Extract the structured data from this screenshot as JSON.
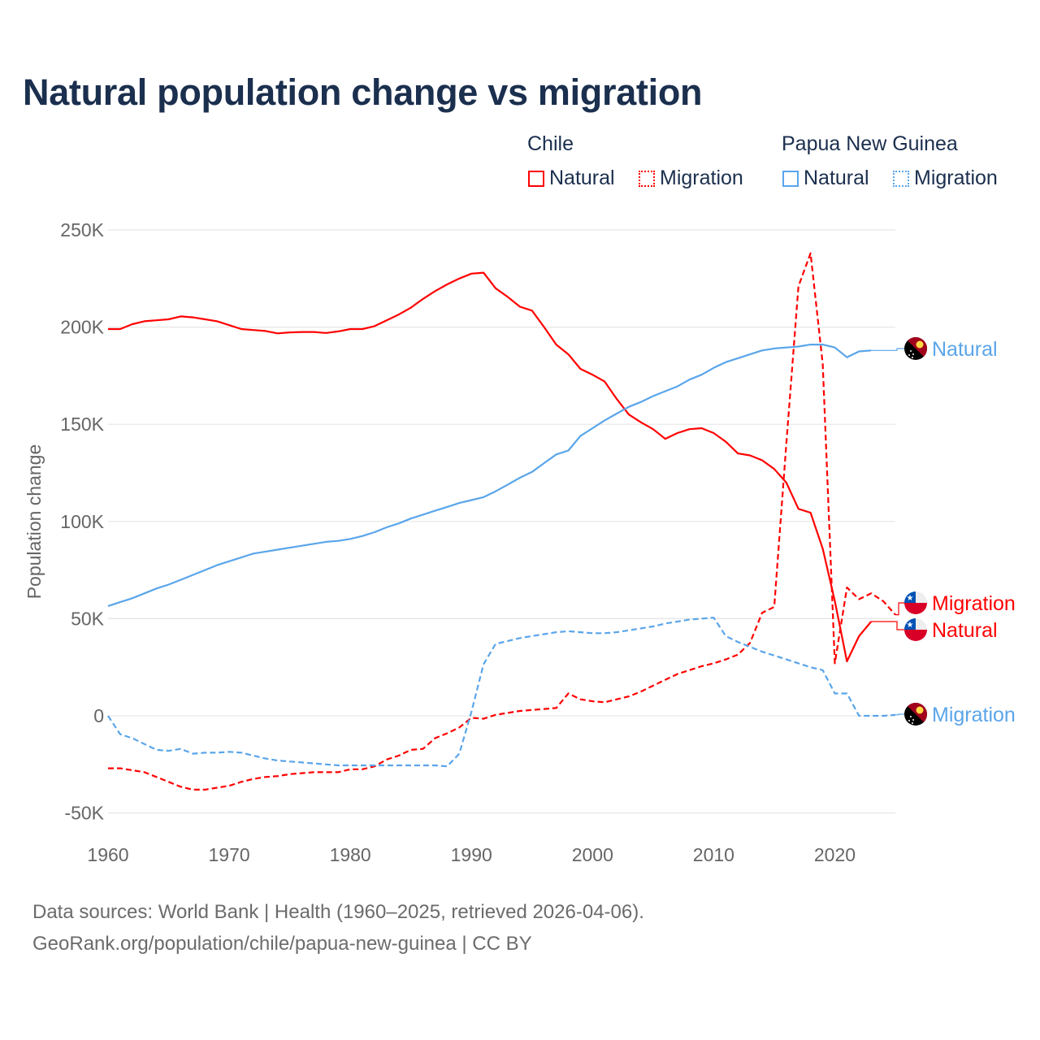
{
  "chart_data": {
    "type": "line",
    "title": "Natural population change vs migration",
    "xlabel": "",
    "ylabel": "Population change",
    "xlim": [
      1960,
      2025
    ],
    "ylim": [
      -50000,
      250000
    ],
    "x_ticks": [
      "1960",
      "1970",
      "1980",
      "1990",
      "2000",
      "2010",
      "2020"
    ],
    "y_ticks": [
      {
        "value": 250000,
        "label": "250K"
      },
      {
        "value": 200000,
        "label": "200K"
      },
      {
        "value": 150000,
        "label": "150K"
      },
      {
        "value": 100000,
        "label": "100K"
      },
      {
        "value": 50000,
        "label": "50K"
      },
      {
        "value": 0,
        "label": "0"
      },
      {
        "value": -50000,
        "label": "-50K"
      }
    ],
    "grid": true,
    "legend": {
      "placement": "top-right",
      "groups": [
        {
          "country": "Chile",
          "items": [
            "Natural",
            "Migration"
          ]
        },
        {
          "country": "Papua New Guinea",
          "items": [
            "Natural",
            "Migration"
          ]
        }
      ]
    },
    "series": [
      {
        "name": "Chile Natural",
        "country": "Chile",
        "kind": "Natural",
        "label": "Natural",
        "color": "#ff0000",
        "dashed": false,
        "flag": "chile",
        "x_start": 1960,
        "values": [
          199000,
          199000,
          201500,
          203000,
          203500,
          204000,
          205500,
          205000,
          204000,
          203000,
          201000,
          199000,
          198500,
          198000,
          196800,
          197300,
          197500,
          197500,
          197000,
          197800,
          199000,
          199000,
          200500,
          203500,
          206500,
          210000,
          214500,
          218500,
          222000,
          225000,
          227500,
          228000,
          220000,
          215500,
          210500,
          208500,
          200000,
          191000,
          186000,
          178500,
          175500,
          172000,
          163000,
          155000,
          151000,
          147500,
          142500,
          145500,
          147500,
          148000,
          145500,
          141000,
          135000,
          134000,
          131500,
          127000,
          120000,
          106500,
          104500,
          86000,
          59000,
          28000,
          41000,
          48500
        ]
      },
      {
        "name": "Chile Migration",
        "country": "Chile",
        "kind": "Migration",
        "label": "Migration",
        "color": "#ff0000",
        "dashed": true,
        "flag": "chile",
        "x_start": 1960,
        "values": [
          -27000,
          -27000,
          -28000,
          -29000,
          -31500,
          -34000,
          -36500,
          -38000,
          -38000,
          -37000,
          -36000,
          -34000,
          -32500,
          -31500,
          -31000,
          -30000,
          -29500,
          -29000,
          -29000,
          -29000,
          -27500,
          -27500,
          -26000,
          -22500,
          -20500,
          -17500,
          -17000,
          -11500,
          -9000,
          -6000,
          -1000,
          -1500,
          500,
          1500,
          2500,
          3000,
          3500,
          4000,
          11500,
          8500,
          7500,
          7000,
          8500,
          10000,
          12500,
          15500,
          18500,
          21500,
          23500,
          25500,
          27000,
          29000,
          31500,
          37500,
          53000,
          56000,
          140000,
          221000,
          238000,
          181000,
          27000,
          66000,
          60000,
          63000,
          59000,
          52000
        ]
      },
      {
        "name": "Papua New Guinea Natural",
        "country": "Papua New Guinea",
        "kind": "Natural",
        "label": "Natural",
        "color": "#5aa5ea",
        "dashed": false,
        "flag": "png",
        "x_start": 1960,
        "values": [
          56500,
          58500,
          60500,
          63000,
          65500,
          67500,
          70000,
          72500,
          75000,
          77500,
          79500,
          81500,
          83500,
          84500,
          85500,
          86500,
          87500,
          88500,
          89500,
          90000,
          91000,
          92500,
          94500,
          97000,
          99000,
          101500,
          103500,
          105500,
          107500,
          109500,
          111000,
          112500,
          115500,
          119000,
          122500,
          125500,
          130000,
          134500,
          136500,
          144000,
          148000,
          152000,
          155500,
          159000,
          161500,
          164500,
          167000,
          169500,
          173000,
          175500,
          179000,
          182000,
          184000,
          186000,
          188000,
          189000,
          189500,
          190000,
          191000,
          191000,
          189500,
          184500,
          187500,
          188000
        ]
      },
      {
        "name": "Papua New Guinea Migration",
        "country": "Papua New Guinea",
        "kind": "Migration",
        "label": "Migration",
        "color": "#5aa5ea",
        "dashed": true,
        "flag": "png",
        "x_start": 1960,
        "values": [
          0,
          -9500,
          -11500,
          -14500,
          -17500,
          -18000,
          -17000,
          -19500,
          -19000,
          -19000,
          -18500,
          -19000,
          -20500,
          -22000,
          -23000,
          -23500,
          -24000,
          -24500,
          -25000,
          -25500,
          -25500,
          -25500,
          -25500,
          -25500,
          -25500,
          -25500,
          -25500,
          -25500,
          -26000,
          -19500,
          2000,
          26500,
          37000,
          38500,
          40000,
          41000,
          42000,
          43000,
          43500,
          43000,
          42500,
          42500,
          43000,
          44000,
          45000,
          46000,
          47500,
          48500,
          49500,
          50000,
          50500,
          41000,
          38000,
          35500,
          33000,
          31000,
          29000,
          27000,
          25000,
          23500,
          11500,
          11500,
          0,
          0,
          0,
          500
        ]
      }
    ]
  },
  "footer": {
    "line1": "Data sources: World Bank | Health (1960–2025, retrieved 2026-04-06).",
    "line2": "GeoRank.org/population/chile/papua-new-guinea | CC BY"
  }
}
